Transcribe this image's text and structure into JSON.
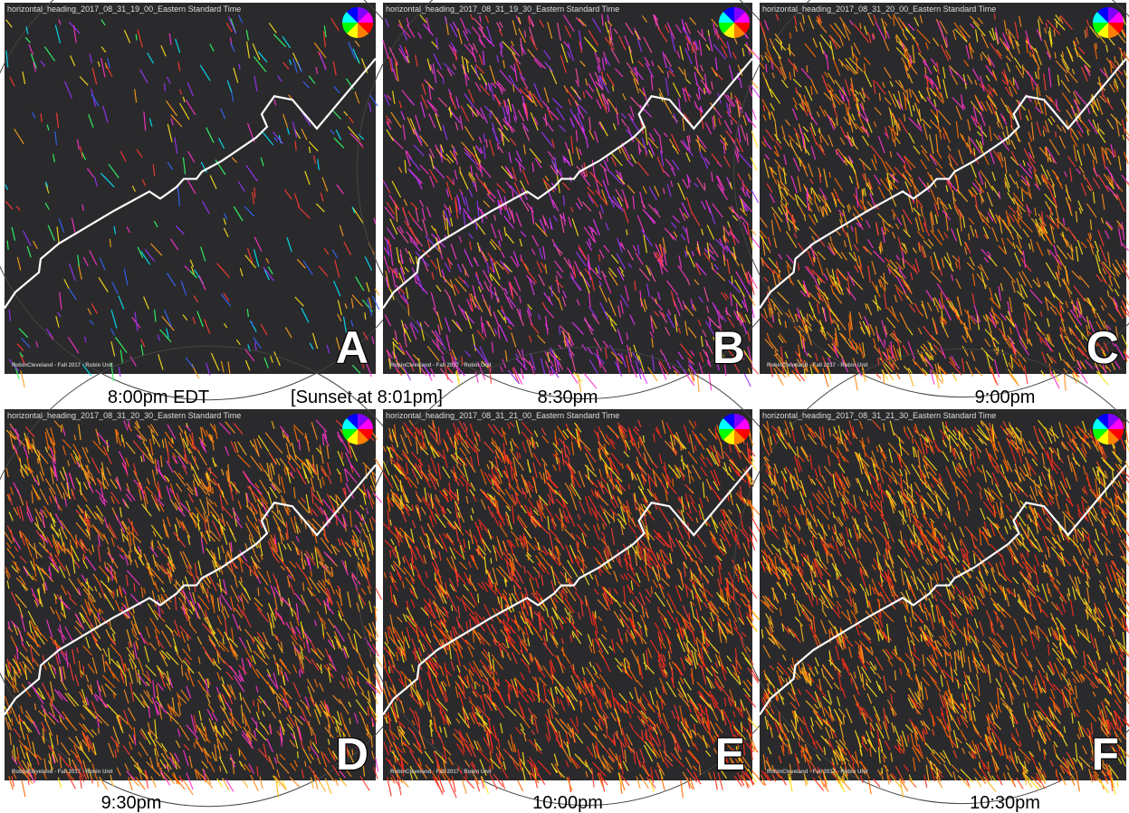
{
  "panels": [
    {
      "header": "horizontal_heading_2017_08_31_19_00_Eastern Standard Time",
      "letter": "A",
      "credit": "RobinCleveland - Fall 2017 - Robin Unit",
      "caption": "8:00pm EDT"
    },
    {
      "header": "horizontal_heading_2017_08_31_19_30_Eastern Standard Time",
      "letter": "B",
      "credit": "RobinCleveland - Fall 2017 - Robin Unit",
      "caption": "8:30pm"
    },
    {
      "header": "horizontal_heading_2017_08_31_20_00_Eastern Standard Time",
      "letter": "C",
      "credit": "RobinCleveland - Fall 2017 - Robin Unit",
      "caption": "9:00pm"
    },
    {
      "header": "horizontal_heading_2017_08_31_20_30_Eastern Standard Time",
      "letter": "D",
      "credit": "RobinCleveland - Fall 2017 - Robin Unit",
      "caption": "9:30pm"
    },
    {
      "header": "horizontal_heading_2017_08_31_21_00_Eastern Standard Time",
      "letter": "E",
      "credit": "RobinCleveland - Fall 2017 - Robin Unit",
      "caption": "10:00pm"
    },
    {
      "header": "horizontal_heading_2017_08_31_21_30_Eastern Standard Time",
      "letter": "F",
      "credit": "RobinCleveland - Fall 2017 - Robin Unit",
      "caption": "10:30pm"
    }
  ],
  "sunset_note": "[Sunset at 8:01pm]"
}
